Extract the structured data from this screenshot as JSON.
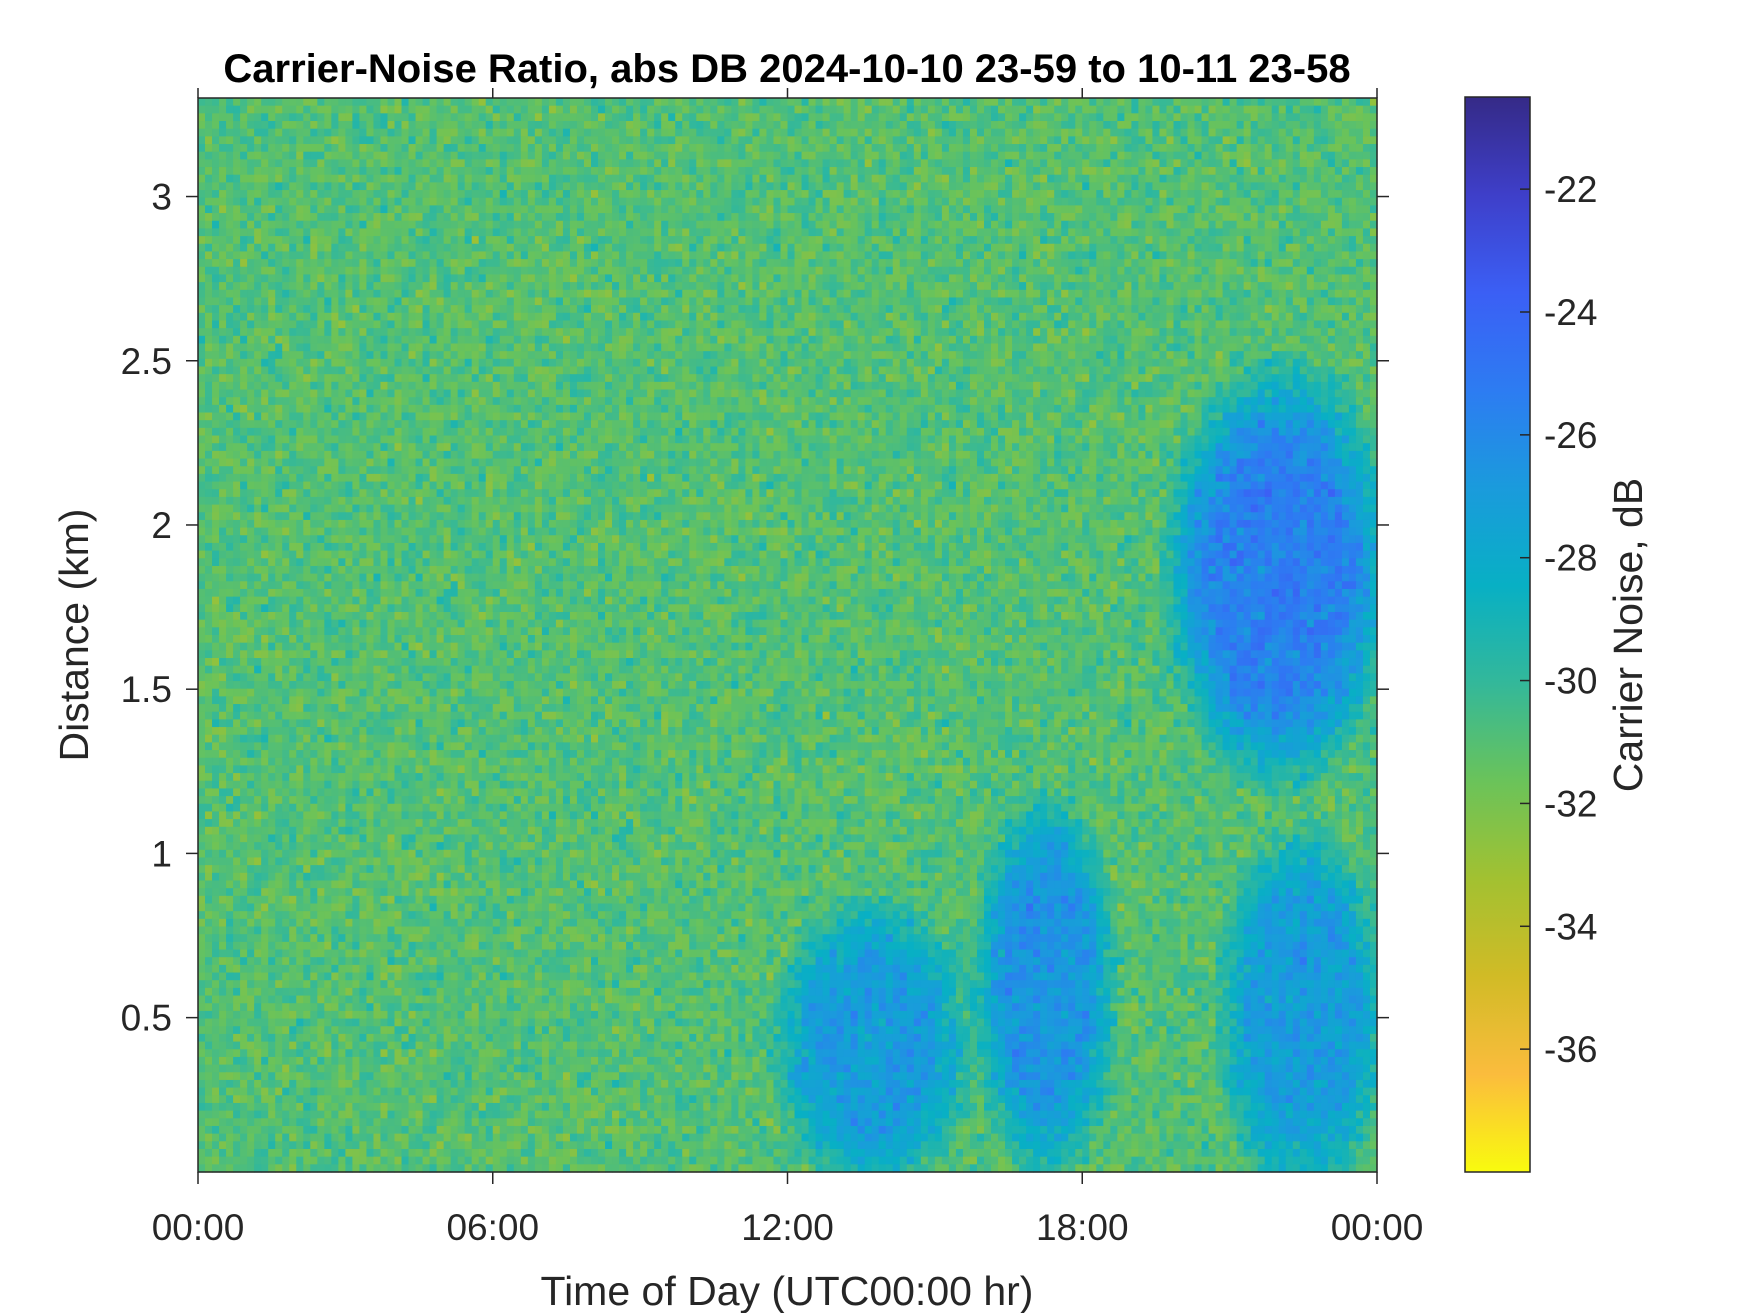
{
  "chart_data": {
    "type": "heatmap",
    "title": "Carrier-Noise Ratio, abs DB 2024-10-10 23-59 to 10-11 23-58",
    "xlabel": "Time of Day (UTC00:00 hr)",
    "ylabel": "Distance (km)",
    "colorbar_label": "Carrier Noise, dB",
    "x_tick_labels": [
      "00:00",
      "06:00",
      "12:00",
      "18:00",
      "00:00"
    ],
    "x_tick_hours": [
      0,
      6,
      12,
      18,
      24
    ],
    "xlim_hours": [
      0,
      24
    ],
    "y_ticks": [
      0.5,
      1,
      1.5,
      2,
      2.5,
      3
    ],
    "y_tick_labels": [
      "0.5",
      "1",
      "1.5",
      "2",
      "2.5",
      "3"
    ],
    "ylim": [
      0.03,
      3.3
    ],
    "colorbar_ticks": [
      -22,
      -24,
      -26,
      -28,
      -30,
      -32,
      -34,
      -36
    ],
    "colorbar_tick_labels": [
      "-22",
      "-24",
      "-26",
      "-28",
      "-30",
      "-32",
      "-34",
      "-36"
    ],
    "clim": [
      -38,
      -20.5
    ],
    "colormap": "parula (reversed: yellow = low, dark blue = high)",
    "colormap_stops": [
      "#f9fb0e",
      "#fbbc3d",
      "#d1bb26",
      "#a2c131",
      "#6ac35a",
      "#33b89a",
      "#08b0c4",
      "#1a9bdc",
      "#2d7cf2",
      "#3b5ff5",
      "#3e3fc9",
      "#352a87"
    ],
    "background_level_db": -31,
    "grid": false,
    "colorbar_position": "right",
    "features": [
      {
        "description": "low-level plume",
        "time_hours": [
          12,
          15.5
        ],
        "distance_km": [
          0.03,
          0.8
        ],
        "level_db": -27
      },
      {
        "description": "mid-day plume",
        "time_hours": [
          16,
          18.5
        ],
        "distance_km": [
          0.1,
          1.1
        ],
        "level_db": -26.5
      },
      {
        "description": "evening plume",
        "time_hours": [
          20,
          24
        ],
        "distance_km": [
          1.3,
          2.4
        ],
        "level_db": -25.5
      },
      {
        "description": "late low plume",
        "time_hours": [
          21,
          24
        ],
        "distance_km": [
          0.03,
          1.0
        ],
        "level_db": -27
      }
    ]
  }
}
